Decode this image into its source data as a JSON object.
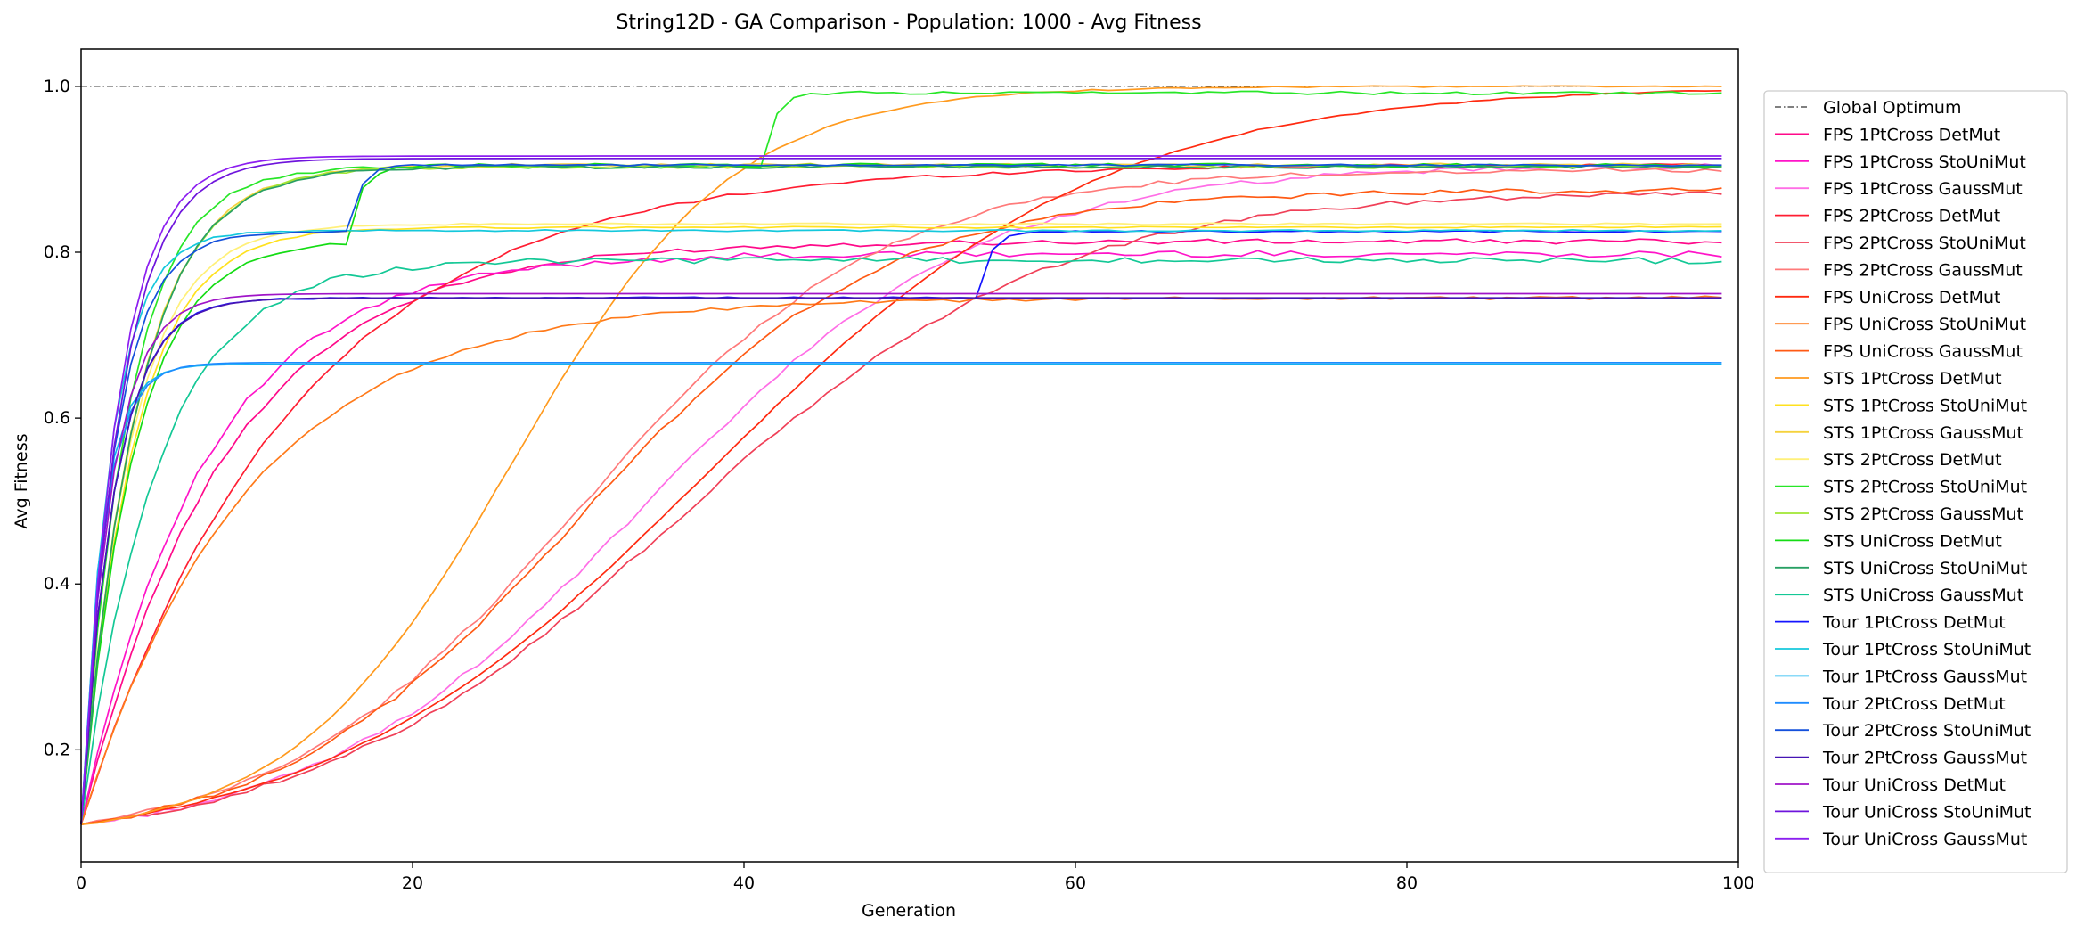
{
  "chart_data": {
    "type": "line",
    "title": "String12D - GA Comparison - Population: 1000 - Avg Fitness",
    "xlabel": "Generation",
    "ylabel": "Avg Fitness",
    "xlim": [
      0,
      100
    ],
    "ylim": [
      0.065,
      1.045
    ],
    "xticks": [
      0,
      20,
      40,
      60,
      80,
      100
    ],
    "yticks": [
      0.2,
      0.4,
      0.6,
      0.8,
      1.0
    ],
    "xtick_labels": [
      "0",
      "20",
      "40",
      "60",
      "80",
      "100"
    ],
    "ytick_labels": [
      "0.2",
      "0.4",
      "0.6",
      "0.8",
      "1.0"
    ],
    "grid": false,
    "legend_position": "right",
    "reference_line": {
      "name": "Global Optimum",
      "y": 1.0,
      "color": "#000000",
      "style": "dashdot"
    },
    "series": [
      {
        "name": "FPS 1PtCross DetMut",
        "color": "#ff0a8a",
        "shape": "log",
        "start": 0.11,
        "final": 0.813,
        "rate": 0.115,
        "noise": 0.003
      },
      {
        "name": "FPS 1PtCross StoUniMut",
        "color": "#ff14c8",
        "shape": "log",
        "start": 0.11,
        "final": 0.798,
        "rate": 0.135,
        "noise": 0.004
      },
      {
        "name": "FPS 1PtCross GaussMut",
        "color": "#ff6ee6",
        "shape": "sig",
        "start": 0.11,
        "final": 0.905,
        "rate": 0.1,
        "mid": 34,
        "noise": 0.003
      },
      {
        "name": "FPS 2PtCross DetMut",
        "color": "#ff1e32",
        "shape": "log",
        "start": 0.11,
        "final": 0.906,
        "rate": 0.078,
        "noise": 0.002
      },
      {
        "name": "FPS 2PtCross StoUniMut",
        "color": "#f04058",
        "shape": "sig",
        "start": 0.11,
        "final": 0.875,
        "rate": 0.09,
        "mid": 36,
        "noise": 0.003
      },
      {
        "name": "FPS 2PtCross GaussMut",
        "color": "#ff7a7a",
        "shape": "sig",
        "start": 0.11,
        "final": 0.9,
        "rate": 0.11,
        "mid": 30,
        "noise": 0.003
      },
      {
        "name": "FPS UniCross DetMut",
        "color": "#ff2a10",
        "shape": "sig",
        "start": 0.11,
        "final": 1.0,
        "rate": 0.085,
        "mid": 38,
        "noise": 0.001
      },
      {
        "name": "FPS UniCross StoUniMut",
        "color": "#ff7a1a",
        "shape": "log",
        "start": 0.11,
        "final": 0.745,
        "rate": 0.1,
        "noise": 0.002
      },
      {
        "name": "FPS UniCross GaussMut",
        "color": "#ff5a14",
        "shape": "sig",
        "start": 0.11,
        "final": 0.875,
        "rate": 0.11,
        "mid": 30,
        "noise": 0.003
      },
      {
        "name": "STS 1PtCross DetMut",
        "color": "#ff9a1e",
        "shape": "sig",
        "start": 0.11,
        "final": 1.0,
        "rate": 0.15,
        "mid": 26,
        "noise": 0.001
      },
      {
        "name": "STS 1PtCross StoUniMut",
        "color": "#ffe11e",
        "shape": "log",
        "start": 0.11,
        "final": 0.83,
        "rate": 0.32,
        "noise": 0.001
      },
      {
        "name": "STS 1PtCross GaussMut",
        "color": "#f5d23c",
        "shape": "log",
        "start": 0.11,
        "final": 0.905,
        "rate": 0.3,
        "noise": 0.002
      },
      {
        "name": "STS 2PtCross DetMut",
        "color": "#fff07a",
        "shape": "log",
        "start": 0.11,
        "final": 0.834,
        "rate": 0.34,
        "noise": 0.001
      },
      {
        "name": "STS 2PtCross StoUniMut",
        "color": "#28e628",
        "shape": "step",
        "start": 0.11,
        "final": 0.992,
        "rate": 0.35,
        "plateau": 0.903,
        "jump": 41,
        "noise": 0.002
      },
      {
        "name": "STS 2PtCross GaussMut",
        "color": "#a0e632",
        "shape": "log",
        "start": 0.11,
        "final": 0.903,
        "rate": 0.3,
        "noise": 0.002
      },
      {
        "name": "STS UniCross DetMut",
        "color": "#14dc14",
        "shape": "step",
        "start": 0.11,
        "final": 0.905,
        "rate": 0.32,
        "plateau": 0.815,
        "jump": 16,
        "noise": 0.002
      },
      {
        "name": "STS UniCross StoUniMut",
        "color": "#28a064",
        "shape": "log",
        "start": 0.11,
        "final": 0.903,
        "rate": 0.3,
        "noise": 0.002
      },
      {
        "name": "STS UniCross GaussMut",
        "color": "#14c896",
        "shape": "log",
        "start": 0.11,
        "final": 0.79,
        "rate": 0.22,
        "noise": 0.004
      },
      {
        "name": "Tour 1PtCross DetMut",
        "color": "#1414ff",
        "shape": "step",
        "start": 0.11,
        "final": 0.825,
        "rate": 0.5,
        "plateau": 0.745,
        "jump": 54,
        "noise": 0.001
      },
      {
        "name": "Tour 1PtCross StoUniMut",
        "color": "#14c8dc",
        "shape": "log",
        "start": 0.11,
        "final": 0.826,
        "rate": 0.55,
        "noise": 0.001
      },
      {
        "name": "Tour 1PtCross GaussMut",
        "color": "#14b4f0",
        "shape": "log",
        "start": 0.11,
        "final": 0.665,
        "rate": 0.8,
        "noise": 0.0
      },
      {
        "name": "Tour 2PtCross DetMut",
        "color": "#1e8cff",
        "shape": "log",
        "start": 0.11,
        "final": 0.667,
        "rate": 0.75,
        "noise": 0.0
      },
      {
        "name": "Tour 2PtCross StoUniMut",
        "color": "#1450dc",
        "shape": "step",
        "start": 0.11,
        "final": 0.905,
        "rate": 0.5,
        "plateau": 0.825,
        "jump": 16,
        "noise": 0.001
      },
      {
        "name": "Tour 2PtCross GaussMut",
        "color": "#4614b4",
        "shape": "log",
        "start": 0.11,
        "final": 0.745,
        "rate": 0.5,
        "noise": 0.0
      },
      {
        "name": "Tour UniCross DetMut",
        "color": "#a014c8",
        "shape": "log",
        "start": 0.11,
        "final": 0.75,
        "rate": 0.55,
        "noise": 0.0
      },
      {
        "name": "Tour UniCross StoUniMut",
        "color": "#6e14dc",
        "shape": "log",
        "start": 0.11,
        "final": 0.913,
        "rate": 0.42,
        "noise": 0.0
      },
      {
        "name": "Tour UniCross GaussMut",
        "color": "#8c1ef0",
        "shape": "log",
        "start": 0.11,
        "final": 0.916,
        "rate": 0.45,
        "noise": 0.0
      }
    ]
  }
}
